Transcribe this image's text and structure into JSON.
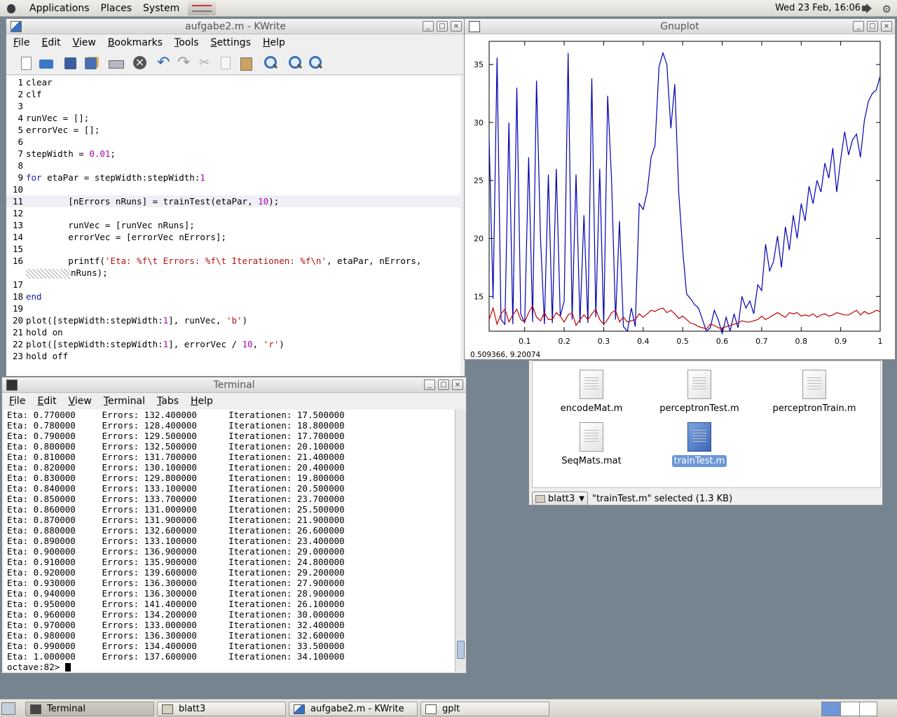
{
  "top_panel": {
    "menus": [
      "Applications",
      "Places",
      "System"
    ],
    "clock": "Wed 23 Feb, 16:06"
  },
  "kwrite": {
    "title": "aufgabe2.m - KWrite",
    "menu": [
      "File",
      "Edit",
      "View",
      "Bookmarks",
      "Tools",
      "Settings",
      "Help"
    ],
    "toolbar_icons": [
      "new-file-icon",
      "open-file-icon",
      "save-icon",
      "save-as-icon",
      "print-icon",
      "close-doc-icon",
      "undo-icon",
      "redo-icon",
      "cut-icon",
      "copy-icon",
      "paste-icon",
      "find-icon",
      "zoom-in-icon",
      "zoom-out-icon"
    ],
    "code": [
      {
        "n": "1",
        "t": "clear"
      },
      {
        "n": "2",
        "t": "clf"
      },
      {
        "n": "3",
        "t": ""
      },
      {
        "n": "4",
        "t": "runVec = [];"
      },
      {
        "n": "5",
        "t": "errorVec = [];"
      },
      {
        "n": "6",
        "t": ""
      },
      {
        "n": "7",
        "t": "stepWidth = 0.01;"
      },
      {
        "n": "8",
        "t": ""
      },
      {
        "n": "9",
        "t": "for etaPar = stepWidth:stepWidth:1"
      },
      {
        "n": "10",
        "t": ""
      },
      {
        "n": "11",
        "t": "        [nErrors nRuns] = trainTest(etaPar, 10);"
      },
      {
        "n": "12",
        "t": ""
      },
      {
        "n": "13",
        "t": "        runVec = [runVec nRuns];"
      },
      {
        "n": "14",
        "t": "        errorVec = [errorVec nErrors];"
      },
      {
        "n": "15",
        "t": ""
      },
      {
        "n": "16",
        "t": "        printf('Eta: %f\\t Errors: %f\\t Iterationen: %f\\n', etaPar, nErrors,"
      },
      {
        "n": "",
        "t": "nRuns);"
      },
      {
        "n": "17",
        "t": ""
      },
      {
        "n": "18",
        "t": "end"
      },
      {
        "n": "19",
        "t": ""
      },
      {
        "n": "20",
        "t": "plot([stepWidth:stepWidth:1], runVec, 'b')"
      },
      {
        "n": "21",
        "t": "hold on"
      },
      {
        "n": "22",
        "t": "plot([stepWidth:stepWidth:1], errorVec / 10, 'r')"
      },
      {
        "n": "23",
        "t": "hold off"
      }
    ]
  },
  "gnuplot": {
    "title": "Gnuplot",
    "coords": "0.509366,  9.20074",
    "chart_data": {
      "type": "line",
      "xlim": [
        0.01,
        1.0
      ],
      "ylim": [
        12,
        37
      ],
      "x_ticks": [
        "0.1",
        "0.2",
        "0.3",
        "0.4",
        "0.5",
        "0.6",
        "0.7",
        "0.8",
        "0.9",
        "1"
      ],
      "y_ticks": [
        "15",
        "20",
        "25",
        "30",
        "35"
      ],
      "grid": false,
      "series": [
        {
          "color": "#0000b0",
          "x": [
            0.01,
            0.02,
            0.03,
            0.04,
            0.05,
            0.06,
            0.07,
            0.08,
            0.09,
            0.1,
            0.11,
            0.12,
            0.13,
            0.14,
            0.15,
            0.16,
            0.17,
            0.18,
            0.19,
            0.2,
            0.21,
            0.22,
            0.23,
            0.24,
            0.25,
            0.26,
            0.27,
            0.28,
            0.29,
            0.3,
            0.31,
            0.32,
            0.33,
            0.34,
            0.35,
            0.36,
            0.37,
            0.38,
            0.39,
            0.4,
            0.41,
            0.42,
            0.43,
            0.44,
            0.45,
            0.46,
            0.47,
            0.48,
            0.49,
            0.5,
            0.51,
            0.52,
            0.53,
            0.54,
            0.55,
            0.56,
            0.57,
            0.58,
            0.59,
            0.6,
            0.61,
            0.62,
            0.63,
            0.64,
            0.65,
            0.66,
            0.67,
            0.68,
            0.69,
            0.7,
            0.71,
            0.72,
            0.73,
            0.74,
            0.75,
            0.76,
            0.77,
            0.78,
            0.79,
            0.8,
            0.81,
            0.82,
            0.83,
            0.84,
            0.85,
            0.86,
            0.87,
            0.88,
            0.89,
            0.9,
            0.91,
            0.92,
            0.93,
            0.94,
            0.95,
            0.96,
            0.97,
            0.98,
            0.99,
            1.0
          ],
          "y": [
            28.5,
            14.8,
            35.6,
            13.0,
            12.6,
            30.0,
            12.6,
            33.0,
            13.5,
            12.7,
            27.0,
            12.8,
            33.6,
            20.0,
            12.6,
            25.5,
            12.7,
            26.0,
            13.3,
            14.6,
            36.0,
            13.0,
            25.5,
            12.7,
            22.0,
            12.7,
            33.8,
            13.2,
            26.0,
            12.5,
            32.3,
            25.0,
            13.0,
            21.5,
            12.4,
            12.0,
            14.0,
            12.4,
            23.0,
            22.5,
            24.0,
            27.0,
            28.0,
            34.8,
            36.0,
            35.0,
            29.5,
            33.3,
            24.0,
            19.0,
            15.2,
            14.8,
            14.3,
            14.0,
            13.0,
            12.0,
            12.3,
            13.8,
            13.0,
            11.8,
            13.2,
            12.0,
            13.5,
            12.3,
            15.0,
            14.0,
            14.6,
            13.5,
            16.0,
            15.5,
            19.5,
            17.2,
            18.0,
            20.2,
            17.5,
            21.0,
            19.0,
            22.0,
            20.0,
            23.0,
            21.5,
            24.5,
            23.0,
            25.0,
            24.0,
            26.5,
            25.2,
            27.8,
            24.0,
            26.8,
            29.2,
            27.2,
            28.5,
            29.0,
            27.0,
            30.2,
            31.8,
            32.5,
            32.8,
            34.0
          ]
        },
        {
          "color": "#c00000",
          "x": [
            0.01,
            0.02,
            0.03,
            0.04,
            0.05,
            0.06,
            0.07,
            0.08,
            0.09,
            0.1,
            0.11,
            0.12,
            0.13,
            0.14,
            0.15,
            0.16,
            0.17,
            0.18,
            0.19,
            0.2,
            0.21,
            0.22,
            0.23,
            0.24,
            0.25,
            0.26,
            0.27,
            0.28,
            0.29,
            0.3,
            0.31,
            0.32,
            0.33,
            0.34,
            0.35,
            0.36,
            0.37,
            0.38,
            0.39,
            0.4,
            0.41,
            0.42,
            0.43,
            0.44,
            0.45,
            0.46,
            0.47,
            0.48,
            0.49,
            0.5,
            0.51,
            0.52,
            0.53,
            0.54,
            0.55,
            0.56,
            0.57,
            0.58,
            0.59,
            0.6,
            0.61,
            0.62,
            0.63,
            0.64,
            0.65,
            0.66,
            0.67,
            0.68,
            0.69,
            0.7,
            0.71,
            0.72,
            0.73,
            0.74,
            0.75,
            0.76,
            0.77,
            0.78,
            0.79,
            0.8,
            0.81,
            0.82,
            0.83,
            0.84,
            0.85,
            0.86,
            0.87,
            0.88,
            0.89,
            0.9,
            0.91,
            0.92,
            0.93,
            0.94,
            0.95,
            0.96,
            0.97,
            0.98,
            0.99,
            1.0
          ],
          "y": [
            13.0,
            14.0,
            12.6,
            13.5,
            13.9,
            12.8,
            13.4,
            13.9,
            13.0,
            12.8,
            13.6,
            14.2,
            13.2,
            12.9,
            13.6,
            13.0,
            13.0,
            13.6,
            13.3,
            12.8,
            13.4,
            13.6,
            12.5,
            13.0,
            13.4,
            13.0,
            13.5,
            13.9,
            13.0,
            12.6,
            13.0,
            13.6,
            13.8,
            12.8,
            13.2,
            12.8,
            12.9,
            13.0,
            13.5,
            13.2,
            13.5,
            13.8,
            13.7,
            13.9,
            14.0,
            13.6,
            13.8,
            13.5,
            13.1,
            13.3,
            13.0,
            12.7,
            12.6,
            12.4,
            12.3,
            12.2,
            12.6,
            12.5,
            12.3,
            12.2,
            12.4,
            12.5,
            12.6,
            12.7,
            12.9,
            12.8,
            12.8,
            12.9,
            13.0,
            13.3,
            13.0,
            13.2,
            13.4,
            13.6,
            13.4,
            13.2,
            13.6,
            13.5,
            13.6,
            13.3,
            13.4,
            13.3,
            13.5,
            13.2,
            13.4,
            13.5,
            13.3,
            13.4,
            13.6,
            13.5,
            13.4,
            13.4,
            13.6,
            13.8,
            13.4,
            13.7,
            13.5,
            13.6,
            13.8,
            13.7
          ]
        }
      ]
    }
  },
  "files": {
    "items": [
      {
        "name": "encodeMat.m",
        "selected": false
      },
      {
        "name": "perceptronTest.m",
        "selected": false
      },
      {
        "name": "perceptronTrain.m",
        "selected": false
      },
      {
        "name": "SeqMats.mat",
        "selected": false
      },
      {
        "name": "trainTest.m",
        "selected": true
      }
    ],
    "location": "blatt3",
    "status": "\"trainTest.m\" selected (1.3 KB)"
  },
  "terminal": {
    "title": "Terminal",
    "menu": [
      "File",
      "Edit",
      "View",
      "Terminal",
      "Tabs",
      "Help"
    ],
    "lines": [
      "Eta: 0.770000     Errors: 132.400000      Iterationen: 17.500000",
      "Eta: 0.780000     Errors: 128.400000      Iterationen: 18.800000",
      "Eta: 0.790000     Errors: 129.500000      Iterationen: 17.700000",
      "Eta: 0.800000     Errors: 132.500000      Iterationen: 20.100000",
      "Eta: 0.810000     Errors: 131.700000      Iterationen: 21.400000",
      "Eta: 0.820000     Errors: 130.100000      Iterationen: 20.400000",
      "Eta: 0.830000     Errors: 129.800000      Iterationen: 19.800000",
      "Eta: 0.840000     Errors: 133.100000      Iterationen: 20.500000",
      "Eta: 0.850000     Errors: 133.700000      Iterationen: 23.700000",
      "Eta: 0.860000     Errors: 131.000000      Iterationen: 25.500000",
      "Eta: 0.870000     Errors: 131.900000      Iterationen: 21.900000",
      "Eta: 0.880000     Errors: 132.600000      Iterationen: 26.600000",
      "Eta: 0.890000     Errors: 133.100000      Iterationen: 23.400000",
      "Eta: 0.900000     Errors: 136.900000      Iterationen: 29.000000",
      "Eta: 0.910000     Errors: 135.900000      Iterationen: 24.800000",
      "Eta: 0.920000     Errors: 139.600000      Iterationen: 29.200000",
      "Eta: 0.930000     Errors: 136.300000      Iterationen: 27.900000",
      "Eta: 0.940000     Errors: 136.300000      Iterationen: 28.900000",
      "Eta: 0.950000     Errors: 141.400000      Iterationen: 26.100000",
      "Eta: 0.960000     Errors: 134.200000      Iterationen: 30.000000",
      "Eta: 0.970000     Errors: 133.000000      Iterationen: 32.400000",
      "Eta: 0.980000     Errors: 136.300000      Iterationen: 32.600000",
      "Eta: 0.990000     Errors: 134.400000      Iterationen: 33.500000",
      "Eta: 1.000000     Errors: 137.600000      Iterationen: 34.100000"
    ],
    "prompt": "octave:82> "
  },
  "taskbar": {
    "items": [
      {
        "label": "Terminal",
        "active": true
      },
      {
        "label": "blatt3",
        "active": false
      },
      {
        "label": "aufgabe2.m - KWrite",
        "active": false
      },
      {
        "label": "gplt",
        "active": false
      }
    ]
  }
}
